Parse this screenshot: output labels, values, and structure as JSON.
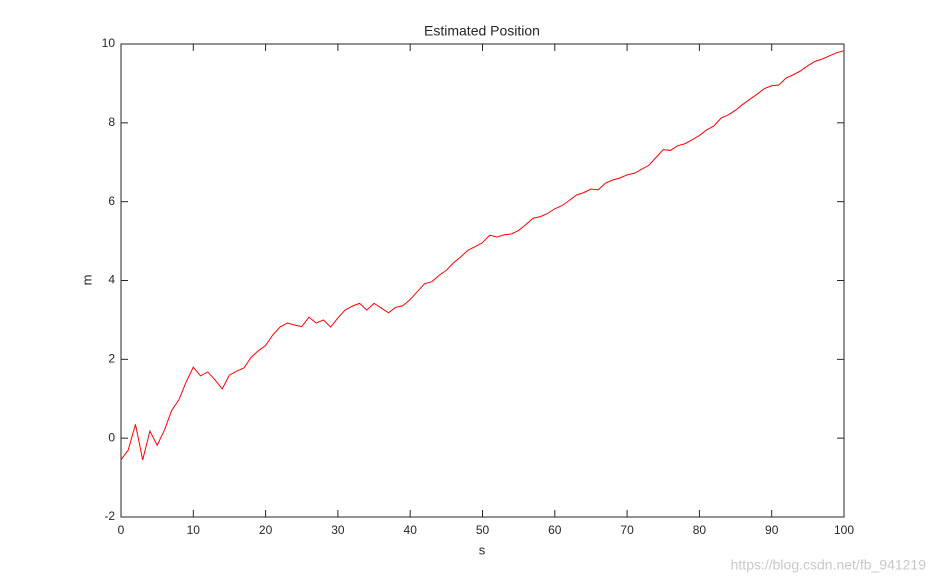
{
  "chart_data": {
    "type": "line",
    "title": "Estimated Position",
    "xlabel": "s",
    "ylabel": "m",
    "x": [
      0,
      1,
      2,
      3,
      4,
      5,
      6,
      7,
      8,
      9,
      10,
      11,
      12,
      13,
      14,
      15,
      16,
      17,
      18,
      19,
      20,
      21,
      22,
      23,
      24,
      25,
      26,
      27,
      28,
      29,
      30,
      31,
      32,
      33,
      34,
      35,
      36,
      37,
      38,
      39,
      40,
      41,
      42,
      43,
      44,
      45,
      46,
      47,
      48,
      49,
      50,
      51,
      52,
      53,
      54,
      55,
      56,
      57,
      58,
      59,
      60,
      61,
      62,
      63,
      64,
      65,
      66,
      67,
      68,
      69,
      70,
      71,
      72,
      73,
      74,
      75,
      76,
      77,
      78,
      79,
      80,
      81,
      82,
      83,
      84,
      85,
      86,
      87,
      88,
      89,
      90,
      91,
      92,
      93,
      94,
      95,
      96,
      97,
      98,
      99,
      100
    ],
    "series": [
      {
        "color": "#ff0000",
        "values": [
          -0.55,
          -0.3,
          0.35,
          -0.55,
          0.18,
          -0.18,
          0.2,
          0.7,
          0.97,
          1.42,
          1.8,
          1.58,
          1.68,
          1.48,
          1.25,
          1.6,
          1.7,
          1.78,
          2.05,
          2.22,
          2.35,
          2.62,
          2.82,
          2.92,
          2.87,
          2.83,
          3.07,
          2.92,
          3.0,
          2.82,
          3.05,
          3.25,
          3.35,
          3.42,
          3.25,
          3.42,
          3.3,
          3.18,
          3.32,
          3.36,
          3.52,
          3.72,
          3.92,
          3.97,
          4.13,
          4.26,
          4.45,
          4.6,
          4.77,
          4.86,
          4.96,
          5.15,
          5.1,
          5.16,
          5.18,
          5.27,
          5.42,
          5.58,
          5.62,
          5.7,
          5.82,
          5.9,
          6.03,
          6.17,
          6.23,
          6.32,
          6.3,
          6.47,
          6.55,
          6.6,
          6.68,
          6.72,
          6.82,
          6.92,
          7.12,
          7.32,
          7.3,
          7.42,
          7.47,
          7.57,
          7.68,
          7.82,
          7.92,
          8.12,
          8.2,
          8.32,
          8.47,
          8.6,
          8.73,
          8.87,
          8.94,
          8.96,
          9.14,
          9.22,
          9.32,
          9.45,
          9.56,
          9.62,
          9.7,
          9.78,
          9.83
        ]
      }
    ],
    "xlim": [
      0,
      100
    ],
    "xticks": [
      0,
      10,
      20,
      30,
      40,
      50,
      60,
      70,
      80,
      90,
      100
    ],
    "ylim": [
      -2,
      10
    ],
    "yticks": [
      -2,
      0,
      2,
      4,
      6,
      8,
      10
    ],
    "watermark": "https://blog.csdn.net/fb_941219"
  }
}
